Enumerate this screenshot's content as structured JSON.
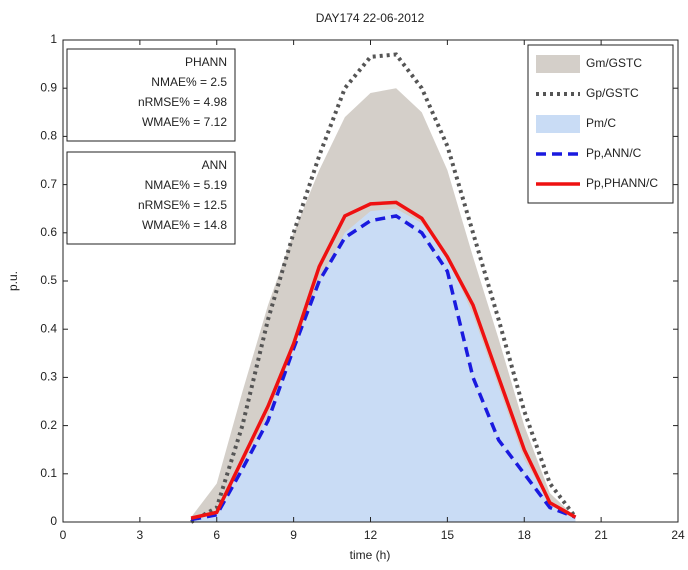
{
  "chart_data": {
    "type": "line",
    "title": "DAY174 22-06-2012",
    "x_label": "time (h)",
    "y_label": "p.u.",
    "x": [
      5,
      6,
      7,
      8,
      9,
      10,
      11,
      12,
      13,
      14,
      15,
      16,
      17,
      18,
      19,
      20
    ],
    "series": [
      {
        "name": "Gm/GSTC",
        "color": "#d4cfc9",
        "style": "area",
        "values": [
          0.01,
          0.08,
          0.27,
          0.45,
          0.6,
          0.73,
          0.84,
          0.89,
          0.9,
          0.85,
          0.73,
          0.55,
          0.38,
          0.2,
          0.06,
          0.01
        ]
      },
      {
        "name": "Gp/GSTC",
        "color": "#555555",
        "style": "dotted",
        "values": [
          0,
          0.03,
          0.2,
          0.42,
          0.6,
          0.76,
          0.9,
          0.965,
          0.97,
          0.9,
          0.78,
          0.6,
          0.42,
          0.23,
          0.08,
          0.01
        ]
      },
      {
        "name": "Pm/C",
        "color": "#c9dcf5",
        "style": "area",
        "values": [
          0.005,
          0.02,
          0.12,
          0.22,
          0.36,
          0.5,
          0.6,
          0.645,
          0.65,
          0.62,
          0.55,
          0.43,
          0.28,
          0.13,
          0.04,
          0.01
        ]
      },
      {
        "name": "Pp,ANN/C",
        "color": "#1a1adf",
        "style": "dashed",
        "values": [
          0.005,
          0.015,
          0.11,
          0.21,
          0.36,
          0.5,
          0.59,
          0.625,
          0.635,
          0.6,
          0.52,
          0.3,
          0.17,
          0.1,
          0.03,
          0.01
        ]
      },
      {
        "name": "Pp,PHANN/C",
        "color": "#ee1111",
        "style": "solid",
        "values": [
          0.008,
          0.02,
          0.13,
          0.24,
          0.37,
          0.53,
          0.635,
          0.66,
          0.663,
          0.63,
          0.55,
          0.45,
          0.3,
          0.15,
          0.04,
          0.01
        ]
      }
    ],
    "xlim": [
      0,
      24
    ],
    "xticks": [
      0,
      3,
      6,
      9,
      12,
      15,
      18,
      21,
      24
    ],
    "ylim": [
      0,
      1
    ],
    "yticks": [
      0,
      0.1,
      0.2,
      0.3,
      0.4,
      0.5,
      0.6,
      0.7,
      0.8,
      0.9,
      1
    ],
    "grid": false,
    "legend_position": "top-right",
    "annotations": [
      {
        "title": "PHANN",
        "lines": [
          "NMAE% = 2.5",
          "nRMSE% = 4.98",
          "WMAE% = 7.12"
        ]
      },
      {
        "title": "ANN",
        "lines": [
          "NMAE% = 5.19",
          "nRMSE% = 12.5",
          "WMAE% = 14.8"
        ]
      }
    ]
  }
}
